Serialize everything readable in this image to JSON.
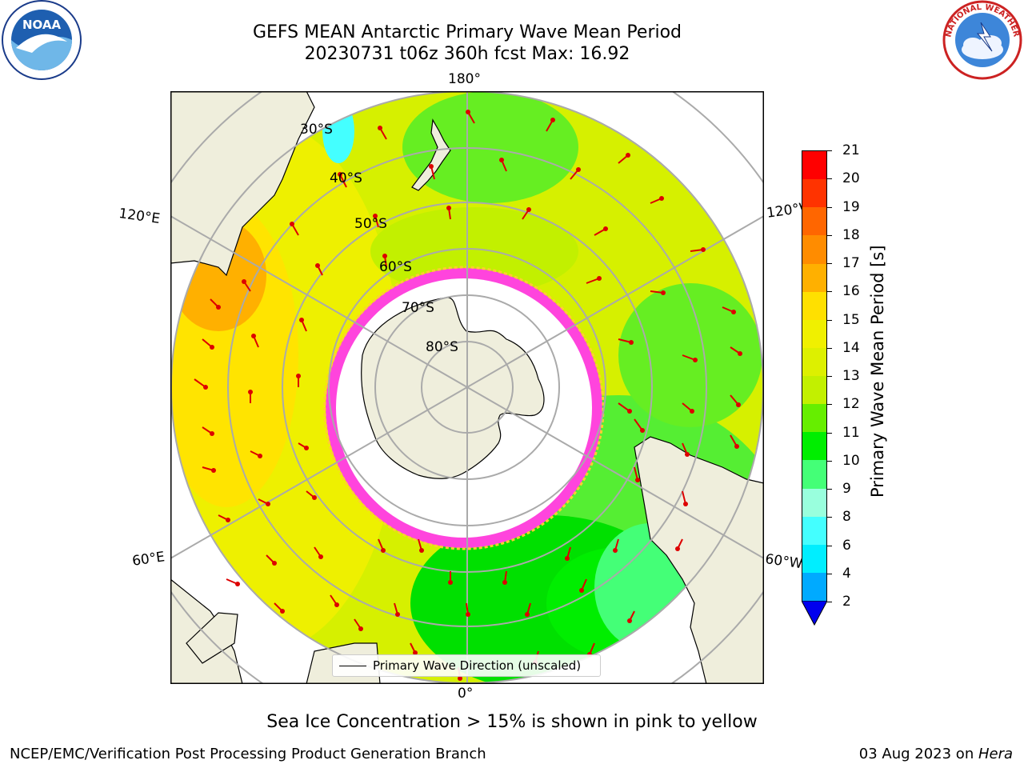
{
  "header": {
    "title_line1": "GEFS MEAN Antarctic Primary Wave Mean Period",
    "title_line2": "20230731 t06z 360h fcst   Max: 16.92"
  },
  "logos": {
    "noaa_text": "NOAA",
    "nws_text": "NATIONAL WEATHER SERVICE"
  },
  "map": {
    "lon_labels": {
      "top": "180°",
      "bottom": "0°",
      "upper_left": "120°E",
      "upper_right": "120°W",
      "lower_left": "60°E",
      "lower_right": "60°W"
    },
    "lat_labels": [
      "30°S",
      "40°S",
      "50°S",
      "60°S",
      "70°S",
      "80°S"
    ],
    "legend_label": "Primary Wave Direction (unscaled)"
  },
  "colorbar": {
    "label": "Primary Wave Mean Period [s]",
    "ticks": [
      "21",
      "20",
      "19",
      "18",
      "17",
      "16",
      "15",
      "14",
      "13",
      "12",
      "11",
      "10",
      "9",
      "8",
      "6",
      "4",
      "2"
    ],
    "colors": [
      "#ff0000",
      "#ff3300",
      "#ff6600",
      "#ff8c00",
      "#ffb000",
      "#ffe000",
      "#f0f000",
      "#ddf000",
      "#c2f000",
      "#66ee00",
      "#00ee00",
      "#44ff77",
      "#99ffdd",
      "#44ffff",
      "#00eeff",
      "#00aaff",
      "#0044ff"
    ],
    "extend_color": "#0000ee"
  },
  "notes": {
    "sea_ice": "Sea Ice Concentration > 15% is shown in pink to yellow"
  },
  "footer": {
    "left": "NCEP/EMC/Verification Post Processing Product Generation Branch",
    "right_date": "03 Aug 2023 on ",
    "right_machine": "Hera"
  }
}
